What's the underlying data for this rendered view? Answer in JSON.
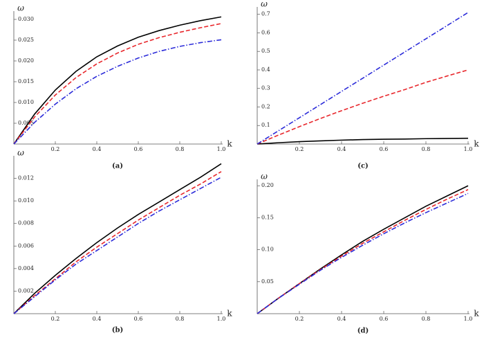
{
  "chart_data": [
    {
      "type": "line",
      "caption": "(a)",
      "xlabel": "k",
      "ylabel": "ω",
      "x": [
        0,
        0.1,
        0.2,
        0.3,
        0.4,
        0.5,
        0.6,
        0.7,
        0.8,
        0.9,
        1
      ],
      "xlim": [
        0,
        1
      ],
      "ylim": [
        0,
        0.032
      ],
      "xticks": [
        0.2,
        0.4,
        0.6,
        0.8,
        {
          "value": 1,
          "label": "1.0"
        }
      ],
      "yticks": [
        0.005,
        {
          "value": 0.01,
          "label": "0.010"
        },
        0.015,
        {
          "value": 0.02,
          "label": "0.020"
        },
        0.025,
        {
          "value": 0.03,
          "label": "0.030"
        }
      ],
      "series": [
        {
          "color": "#000000",
          "style": "solid",
          "values": [
            0,
            0.0072,
            0.013,
            0.0175,
            0.021,
            0.0236,
            0.0257,
            0.0273,
            0.0286,
            0.0297,
            0.0306
          ]
        },
        {
          "color": "#e8262b",
          "style": "dashed",
          "values": [
            0,
            0.0065,
            0.0118,
            0.016,
            0.0193,
            0.0219,
            0.024,
            0.0256,
            0.0269,
            0.028,
            0.029
          ]
        },
        {
          "color": "#2b2bd9",
          "style": "dashdot",
          "values": [
            0,
            0.0052,
            0.0096,
            0.0133,
            0.0163,
            0.0187,
            0.0207,
            0.0223,
            0.0235,
            0.0244,
            0.0251
          ]
        }
      ]
    },
    {
      "type": "line",
      "caption": "(c)",
      "xlabel": "k",
      "ylabel": "ω",
      "x": [
        0,
        0.1,
        0.2,
        0.3,
        0.4,
        0.5,
        0.6,
        0.7,
        0.8,
        0.9,
        1
      ],
      "xlim": [
        0,
        1
      ],
      "ylim": [
        0,
        0.74
      ],
      "xticks": [
        0.2,
        0.4,
        0.6,
        0.8,
        {
          "value": 1,
          "label": "1.0"
        }
      ],
      "yticks": [
        0.1,
        0.2,
        0.3,
        0.4,
        0.5,
        0.6,
        0.7
      ],
      "series": [
        {
          "color": "#000000",
          "style": "solid",
          "values": [
            0,
            0.007,
            0.013,
            0.017,
            0.021,
            0.024,
            0.026,
            0.027,
            0.029,
            0.03,
            0.031
          ]
        },
        {
          "color": "#e8262b",
          "style": "dashed",
          "values": [
            0,
            0.048,
            0.094,
            0.138,
            0.18,
            0.22,
            0.258,
            0.294,
            0.333,
            0.367,
            0.4
          ]
        },
        {
          "color": "#2b2bd9",
          "style": "dashdot",
          "values": [
            0,
            0.071,
            0.142,
            0.213,
            0.284,
            0.355,
            0.426,
            0.497,
            0.568,
            0.639,
            0.71
          ]
        }
      ]
    },
    {
      "type": "line",
      "caption": "(b)",
      "xlabel": "k",
      "ylabel": "ω",
      "x": [
        0,
        0.1,
        0.2,
        0.3,
        0.4,
        0.5,
        0.6,
        0.7,
        0.8,
        0.9,
        1
      ],
      "xlim": [
        0,
        1
      ],
      "ylim": [
        0,
        0.014
      ],
      "xticks": [
        0.2,
        0.4,
        0.6,
        0.8,
        {
          "value": 1,
          "label": "1.0"
        }
      ],
      "yticks": [
        0.002,
        0.004,
        0.006,
        0.008,
        {
          "value": 0.01,
          "label": "0.010"
        },
        0.012
      ],
      "series": [
        {
          "color": "#000000",
          "style": "solid",
          "values": [
            0,
            0.0018,
            0.0034,
            0.0049,
            0.0063,
            0.0076,
            0.0088,
            0.0099,
            0.011,
            0.0121,
            0.0133
          ]
        },
        {
          "color": "#e8262b",
          "style": "dashed",
          "values": [
            0,
            0.0016,
            0.0031,
            0.0046,
            0.0059,
            0.0071,
            0.0083,
            0.0094,
            0.0105,
            0.0115,
            0.0126
          ]
        },
        {
          "color": "#2b2bd9",
          "style": "dashdot",
          "values": [
            0,
            0.0015,
            0.003,
            0.0044,
            0.0056,
            0.0068,
            0.008,
            0.0091,
            0.0101,
            0.0111,
            0.0121
          ]
        }
      ]
    },
    {
      "type": "line",
      "caption": "(d)",
      "xlabel": "k",
      "ylabel": "ω",
      "x": [
        0,
        0.1,
        0.2,
        0.3,
        0.4,
        0.5,
        0.6,
        0.7,
        0.8,
        0.9,
        1
      ],
      "xlim": [
        0,
        1
      ],
      "ylim": [
        0,
        0.21
      ],
      "xticks": [
        0.2,
        0.4,
        0.6,
        0.8,
        {
          "value": 1,
          "label": "1.0"
        }
      ],
      "yticks": [
        0.05,
        {
          "value": 0.1,
          "label": "0.10"
        },
        0.15,
        {
          "value": 0.2,
          "label": "0.20"
        }
      ],
      "series": [
        {
          "color": "#000000",
          "style": "solid",
          "values": [
            0,
            0.024,
            0.047,
            0.07,
            0.092,
            0.113,
            0.132,
            0.15,
            0.168,
            0.184,
            0.2
          ]
        },
        {
          "color": "#e8262b",
          "style": "dashed",
          "values": [
            0,
            0.024,
            0.047,
            0.069,
            0.09,
            0.11,
            0.128,
            0.146,
            0.163,
            0.179,
            0.194
          ]
        },
        {
          "color": "#2b2bd9",
          "style": "dashdot",
          "values": [
            0,
            0.024,
            0.046,
            0.068,
            0.088,
            0.107,
            0.125,
            0.142,
            0.158,
            0.173,
            0.188
          ]
        }
      ]
    }
  ]
}
